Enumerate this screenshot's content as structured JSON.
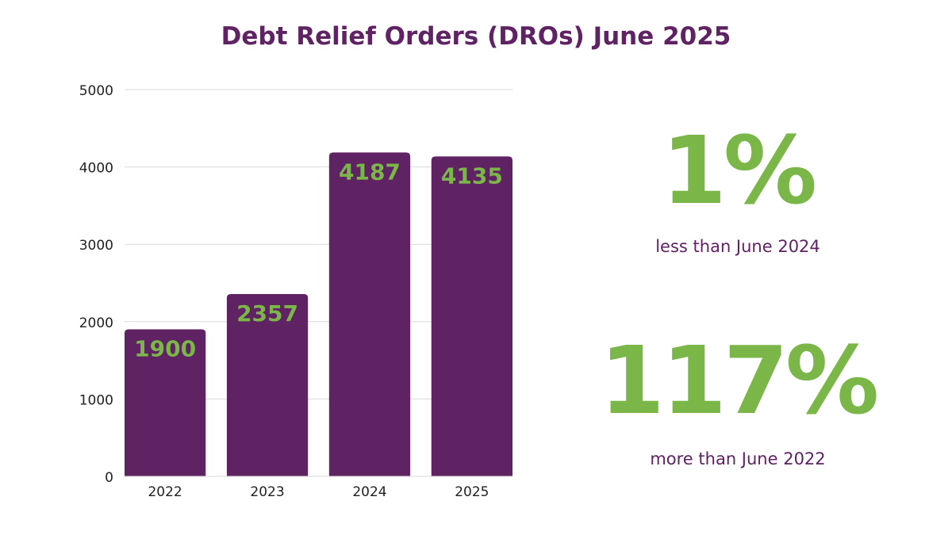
{
  "colors": {
    "purple": "#5f2262",
    "green": "#7ab648",
    "grid": "#d9d9d9",
    "axis_text": "#222222"
  },
  "chart_data": {
    "type": "bar",
    "title": "Debt Relief Orders (DROs) June 2025",
    "categories": [
      "2022",
      "2023",
      "2024",
      "2025"
    ],
    "values": [
      1900,
      2357,
      4187,
      4135
    ],
    "data_labels": [
      "1900",
      "2357",
      "4187",
      "4135"
    ],
    "ylim": [
      0,
      5000
    ],
    "yticks": [
      0,
      1000,
      2000,
      3000,
      4000,
      5000
    ],
    "xlabel": "",
    "ylabel": "",
    "grid": true,
    "legend": "none"
  },
  "stats": [
    {
      "value": "1%",
      "caption": "less than June 2024"
    },
    {
      "value": "117%",
      "caption": "more than June 2022"
    }
  ]
}
